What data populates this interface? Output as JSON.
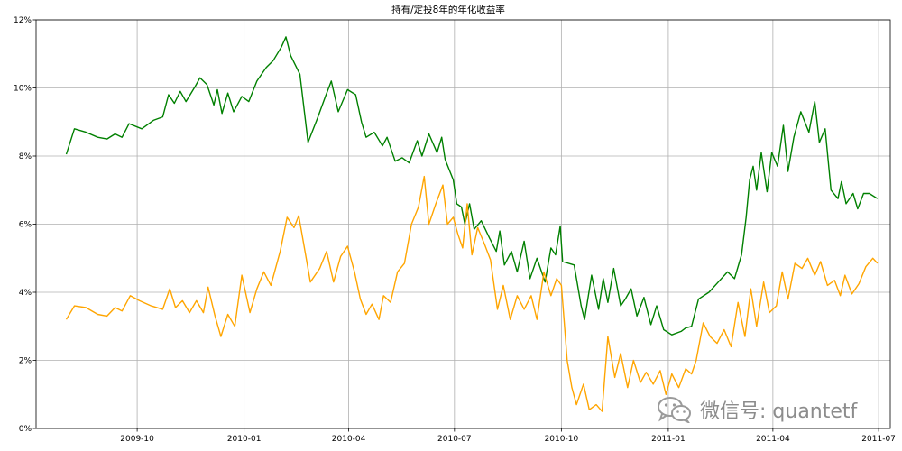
{
  "watermark": {
    "text": "微信号: quantetf",
    "icon": "wechat-icon"
  },
  "chart_data": {
    "type": "line",
    "title": "持有/定投8年的年化收益率",
    "xlabel": "",
    "ylabel": "",
    "x_ticks": [
      "2009-10",
      "2010-01",
      "2010-04",
      "2010-07",
      "2010-10",
      "2011-01",
      "2011-04",
      "2011-07"
    ],
    "y_ticks": [
      "0%",
      "2%",
      "4%",
      "6%",
      "8%",
      "10%",
      "12%"
    ],
    "xlim": [
      "2009-07-06",
      "2011-07-11"
    ],
    "ylim": [
      0,
      12
    ],
    "grid": true,
    "series": [
      {
        "color": "#008000",
        "points": [
          [
            "2009-08-01",
            8.05
          ],
          [
            "2009-08-08",
            8.8
          ],
          [
            "2009-08-18",
            8.7
          ],
          [
            "2009-08-28",
            8.55
          ],
          [
            "2009-09-05",
            8.5
          ],
          [
            "2009-09-12",
            8.65
          ],
          [
            "2009-09-18",
            8.55
          ],
          [
            "2009-09-24",
            8.95
          ],
          [
            "2009-10-05",
            8.8
          ],
          [
            "2009-10-15",
            9.05
          ],
          [
            "2009-10-23",
            9.15
          ],
          [
            "2009-10-28",
            9.8
          ],
          [
            "2009-11-02",
            9.55
          ],
          [
            "2009-11-07",
            9.9
          ],
          [
            "2009-11-12",
            9.6
          ],
          [
            "2009-11-20",
            10.05
          ],
          [
            "2009-11-24",
            10.3
          ],
          [
            "2009-11-30",
            10.1
          ],
          [
            "2009-12-06",
            9.5
          ],
          [
            "2009-12-09",
            9.95
          ],
          [
            "2009-12-13",
            9.25
          ],
          [
            "2009-12-18",
            9.85
          ],
          [
            "2009-12-23",
            9.3
          ],
          [
            "2009-12-30",
            9.75
          ],
          [
            "2010-01-05",
            9.6
          ],
          [
            "2010-01-12",
            10.2
          ],
          [
            "2010-01-20",
            10.6
          ],
          [
            "2010-01-26",
            10.8
          ],
          [
            "2010-02-02",
            11.2
          ],
          [
            "2010-02-06",
            11.5
          ],
          [
            "2010-02-10",
            10.95
          ],
          [
            "2010-02-18",
            10.4
          ],
          [
            "2010-02-25",
            8.4
          ],
          [
            "2010-03-05",
            9.1
          ],
          [
            "2010-03-12",
            9.75
          ],
          [
            "2010-03-17",
            10.2
          ],
          [
            "2010-03-23",
            9.3
          ],
          [
            "2010-03-31",
            9.95
          ],
          [
            "2010-04-07",
            9.8
          ],
          [
            "2010-04-12",
            9.0
          ],
          [
            "2010-04-16",
            8.55
          ],
          [
            "2010-04-23",
            8.7
          ],
          [
            "2010-04-30",
            8.3
          ],
          [
            "2010-05-04",
            8.55
          ],
          [
            "2010-05-11",
            7.85
          ],
          [
            "2010-05-17",
            7.95
          ],
          [
            "2010-05-23",
            7.8
          ],
          [
            "2010-05-30",
            8.45
          ],
          [
            "2010-06-03",
            8.0
          ],
          [
            "2010-06-09",
            8.65
          ],
          [
            "2010-06-16",
            8.1
          ],
          [
            "2010-06-20",
            8.55
          ],
          [
            "2010-06-23",
            7.9
          ],
          [
            "2010-06-30",
            7.3
          ],
          [
            "2010-07-03",
            6.6
          ],
          [
            "2010-07-07",
            6.5
          ],
          [
            "2010-07-10",
            6.0
          ],
          [
            "2010-07-14",
            6.6
          ],
          [
            "2010-07-18",
            5.85
          ],
          [
            "2010-07-24",
            6.1
          ],
          [
            "2010-07-31",
            5.6
          ],
          [
            "2010-08-06",
            5.2
          ],
          [
            "2010-08-09",
            5.8
          ],
          [
            "2010-08-13",
            4.8
          ],
          [
            "2010-08-19",
            5.2
          ],
          [
            "2010-08-24",
            4.6
          ],
          [
            "2010-08-30",
            5.5
          ],
          [
            "2010-09-04",
            4.4
          ],
          [
            "2010-09-10",
            5.0
          ],
          [
            "2010-09-17",
            4.3
          ],
          [
            "2010-09-22",
            5.3
          ],
          [
            "2010-09-26",
            5.1
          ],
          [
            "2010-09-30",
            5.95
          ],
          [
            "2010-10-02",
            4.9
          ],
          [
            "2010-10-12",
            4.8
          ],
          [
            "2010-10-18",
            3.6
          ],
          [
            "2010-10-21",
            3.2
          ],
          [
            "2010-10-27",
            4.5
          ],
          [
            "2010-11-02",
            3.5
          ],
          [
            "2010-11-06",
            4.4
          ],
          [
            "2010-11-10",
            3.7
          ],
          [
            "2010-11-15",
            4.7
          ],
          [
            "2010-11-21",
            3.6
          ],
          [
            "2010-11-25",
            3.8
          ],
          [
            "2010-11-30",
            4.1
          ],
          [
            "2010-12-05",
            3.3
          ],
          [
            "2010-12-11",
            3.85
          ],
          [
            "2010-12-17",
            3.05
          ],
          [
            "2010-12-22",
            3.6
          ],
          [
            "2010-12-28",
            2.9
          ],
          [
            "2011-01-04",
            2.75
          ],
          [
            "2011-01-12",
            2.85
          ],
          [
            "2011-01-16",
            2.95
          ],
          [
            "2011-01-21",
            3.0
          ],
          [
            "2011-01-27",
            3.8
          ],
          [
            "2011-02-05",
            4.0
          ],
          [
            "2011-02-13",
            4.3
          ],
          [
            "2011-02-21",
            4.6
          ],
          [
            "2011-02-27",
            4.4
          ],
          [
            "2011-03-05",
            5.1
          ],
          [
            "2011-03-09",
            6.2
          ],
          [
            "2011-03-12",
            7.3
          ],
          [
            "2011-03-15",
            7.7
          ],
          [
            "2011-03-18",
            7.0
          ],
          [
            "2011-03-22",
            8.1
          ],
          [
            "2011-03-27",
            6.95
          ],
          [
            "2011-03-31",
            8.1
          ],
          [
            "2011-04-05",
            7.7
          ],
          [
            "2011-04-10",
            8.9
          ],
          [
            "2011-04-14",
            7.55
          ],
          [
            "2011-04-19",
            8.55
          ],
          [
            "2011-04-25",
            9.3
          ],
          [
            "2011-05-02",
            8.7
          ],
          [
            "2011-05-07",
            9.6
          ],
          [
            "2011-05-11",
            8.4
          ],
          [
            "2011-05-16",
            8.8
          ],
          [
            "2011-05-21",
            7.0
          ],
          [
            "2011-05-27",
            6.75
          ],
          [
            "2011-05-30",
            7.25
          ],
          [
            "2011-06-03",
            6.6
          ],
          [
            "2011-06-09",
            6.9
          ],
          [
            "2011-06-13",
            6.45
          ],
          [
            "2011-06-18",
            6.9
          ],
          [
            "2011-06-23",
            6.9
          ],
          [
            "2011-06-30",
            6.75
          ]
        ]
      },
      {
        "color": "#FFA500",
        "points": [
          [
            "2009-08-01",
            3.2
          ],
          [
            "2009-08-08",
            3.6
          ],
          [
            "2009-08-18",
            3.55
          ],
          [
            "2009-08-28",
            3.35
          ],
          [
            "2009-09-05",
            3.3
          ],
          [
            "2009-09-12",
            3.55
          ],
          [
            "2009-09-18",
            3.45
          ],
          [
            "2009-09-25",
            3.9
          ],
          [
            "2009-10-03",
            3.75
          ],
          [
            "2009-10-13",
            3.6
          ],
          [
            "2009-10-23",
            3.5
          ],
          [
            "2009-10-29",
            4.1
          ],
          [
            "2009-11-03",
            3.55
          ],
          [
            "2009-11-09",
            3.75
          ],
          [
            "2009-11-15",
            3.4
          ],
          [
            "2009-11-21",
            3.75
          ],
          [
            "2009-11-27",
            3.4
          ],
          [
            "2009-12-01",
            4.15
          ],
          [
            "2009-12-07",
            3.3
          ],
          [
            "2009-12-12",
            2.7
          ],
          [
            "2009-12-18",
            3.35
          ],
          [
            "2009-12-24",
            3.0
          ],
          [
            "2009-12-30",
            4.5
          ],
          [
            "2010-01-06",
            3.4
          ],
          [
            "2010-01-12",
            4.1
          ],
          [
            "2010-01-18",
            4.6
          ],
          [
            "2010-01-24",
            4.2
          ],
          [
            "2010-02-01",
            5.2
          ],
          [
            "2010-02-07",
            6.2
          ],
          [
            "2010-02-13",
            5.9
          ],
          [
            "2010-02-17",
            6.25
          ],
          [
            "2010-02-27",
            4.3
          ],
          [
            "2010-03-07",
            4.7
          ],
          [
            "2010-03-13",
            5.2
          ],
          [
            "2010-03-19",
            4.3
          ],
          [
            "2010-03-25",
            5.05
          ],
          [
            "2010-03-31",
            5.35
          ],
          [
            "2010-04-06",
            4.6
          ],
          [
            "2010-04-11",
            3.8
          ],
          [
            "2010-04-16",
            3.35
          ],
          [
            "2010-04-21",
            3.65
          ],
          [
            "2010-04-27",
            3.2
          ],
          [
            "2010-05-01",
            3.9
          ],
          [
            "2010-05-07",
            3.7
          ],
          [
            "2010-05-13",
            4.6
          ],
          [
            "2010-05-19",
            4.85
          ],
          [
            "2010-05-25",
            6.0
          ],
          [
            "2010-05-31",
            6.5
          ],
          [
            "2010-06-05",
            7.4
          ],
          [
            "2010-06-09",
            6.0
          ],
          [
            "2010-06-15",
            6.6
          ],
          [
            "2010-06-21",
            7.15
          ],
          [
            "2010-06-25",
            6.0
          ],
          [
            "2010-06-30",
            6.2
          ],
          [
            "2010-07-04",
            5.7
          ],
          [
            "2010-07-08",
            5.3
          ],
          [
            "2010-07-12",
            6.6
          ],
          [
            "2010-07-16",
            5.1
          ],
          [
            "2010-07-21",
            5.9
          ],
          [
            "2010-07-27",
            5.4
          ],
          [
            "2010-08-01",
            4.95
          ],
          [
            "2010-08-07",
            3.5
          ],
          [
            "2010-08-12",
            4.2
          ],
          [
            "2010-08-18",
            3.2
          ],
          [
            "2010-08-24",
            3.9
          ],
          [
            "2010-08-30",
            3.5
          ],
          [
            "2010-09-05",
            3.9
          ],
          [
            "2010-09-10",
            3.2
          ],
          [
            "2010-09-16",
            4.6
          ],
          [
            "2010-09-22",
            3.9
          ],
          [
            "2010-09-27",
            4.4
          ],
          [
            "2010-10-01",
            4.2
          ],
          [
            "2010-10-06",
            2.0
          ],
          [
            "2010-10-10",
            1.2
          ],
          [
            "2010-10-14",
            0.7
          ],
          [
            "2010-10-20",
            1.3
          ],
          [
            "2010-10-25",
            0.55
          ],
          [
            "2010-10-31",
            0.7
          ],
          [
            "2010-11-05",
            0.5
          ],
          [
            "2010-11-10",
            2.7
          ],
          [
            "2010-11-16",
            1.5
          ],
          [
            "2010-11-21",
            2.2
          ],
          [
            "2010-11-27",
            1.2
          ],
          [
            "2010-12-02",
            2.0
          ],
          [
            "2010-12-08",
            1.35
          ],
          [
            "2010-12-13",
            1.65
          ],
          [
            "2010-12-19",
            1.3
          ],
          [
            "2010-12-25",
            1.7
          ],
          [
            "2010-12-30",
            1.0
          ],
          [
            "2011-01-04",
            1.6
          ],
          [
            "2011-01-10",
            1.2
          ],
          [
            "2011-01-16",
            1.75
          ],
          [
            "2011-01-21",
            1.6
          ],
          [
            "2011-01-25",
            2.0
          ],
          [
            "2011-01-31",
            3.1
          ],
          [
            "2011-02-06",
            2.7
          ],
          [
            "2011-02-12",
            2.5
          ],
          [
            "2011-02-18",
            2.9
          ],
          [
            "2011-02-24",
            2.4
          ],
          [
            "2011-03-02",
            3.7
          ],
          [
            "2011-03-08",
            2.7
          ],
          [
            "2011-03-13",
            4.1
          ],
          [
            "2011-03-18",
            3.0
          ],
          [
            "2011-03-24",
            4.3
          ],
          [
            "2011-03-29",
            3.4
          ],
          [
            "2011-04-04",
            3.6
          ],
          [
            "2011-04-09",
            4.6
          ],
          [
            "2011-04-14",
            3.8
          ],
          [
            "2011-04-20",
            4.85
          ],
          [
            "2011-04-26",
            4.7
          ],
          [
            "2011-05-01",
            5.0
          ],
          [
            "2011-05-07",
            4.5
          ],
          [
            "2011-05-12",
            4.9
          ],
          [
            "2011-05-18",
            4.2
          ],
          [
            "2011-05-24",
            4.35
          ],
          [
            "2011-05-29",
            3.9
          ],
          [
            "2011-06-02",
            4.5
          ],
          [
            "2011-06-08",
            3.95
          ],
          [
            "2011-06-14",
            4.25
          ],
          [
            "2011-06-20",
            4.75
          ],
          [
            "2011-06-26",
            5.0
          ],
          [
            "2011-06-30",
            4.85
          ]
        ]
      }
    ]
  }
}
